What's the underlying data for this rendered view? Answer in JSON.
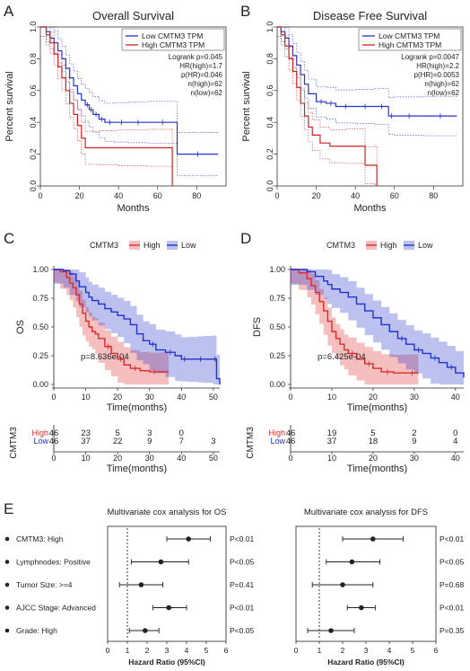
{
  "chart_data": [
    {
      "panel": "A",
      "type": "line",
      "title": "Overall Survival",
      "xlabel": "Months",
      "ylabel": "Percent survival",
      "xlim": [
        0,
        95
      ],
      "ylim": [
        0,
        1
      ],
      "xticks": [
        "0",
        "20",
        "40",
        "60",
        "80"
      ],
      "yticks": [
        "0.0",
        "0.2",
        "0.4",
        "0.6",
        "0.8",
        "1.0"
      ],
      "legend": [
        "Low CMTM3 TPM",
        "High CMTM3 TPM"
      ],
      "stats": [
        "Logrank p=0.045",
        "HR(high)=1.7",
        "p(HR)=0.046",
        "n(high)=62",
        "n(low)=62"
      ],
      "series": [
        {
          "name": "Low CMTM3 TPM",
          "color": "#2233cc",
          "x": [
            0,
            3,
            5,
            7,
            9,
            11,
            13,
            15,
            17,
            19,
            21,
            23,
            25,
            27,
            30,
            33,
            38,
            45,
            55,
            70,
            91
          ],
          "y": [
            1.0,
            0.97,
            0.93,
            0.9,
            0.85,
            0.8,
            0.74,
            0.68,
            0.63,
            0.58,
            0.54,
            0.51,
            0.48,
            0.45,
            0.42,
            0.4,
            0.4,
            0.4,
            0.4,
            0.2,
            0.2
          ]
        },
        {
          "name": "High CMTM3 TPM",
          "color": "#cc2222",
          "x": [
            0,
            3,
            5,
            7,
            9,
            11,
            13,
            15,
            17,
            19,
            21,
            23,
            30,
            40,
            55,
            67,
            67.5
          ],
          "y": [
            1.0,
            0.95,
            0.9,
            0.83,
            0.75,
            0.68,
            0.6,
            0.52,
            0.45,
            0.38,
            0.3,
            0.24,
            0.24,
            0.24,
            0.24,
            0.24,
            0.0
          ]
        }
      ]
    },
    {
      "panel": "B",
      "type": "line",
      "title": "Disease Free Survival",
      "xlabel": "Months",
      "ylabel": "Percent survival",
      "xlim": [
        0,
        95
      ],
      "ylim": [
        0,
        1
      ],
      "xticks": [
        "0",
        "20",
        "40",
        "60",
        "80"
      ],
      "yticks": [
        "0.0",
        "0.2",
        "0.4",
        "0.6",
        "0.8",
        "1.0"
      ],
      "legend": [
        "Low CMTM3 TPM",
        "High CMTM3 TPM"
      ],
      "stats": [
        "Logrank p=0.0047",
        "HR(high)=2.2",
        "p(HR)=0.0053",
        "n(high)=62",
        "n(low)=62"
      ],
      "series": [
        {
          "name": "Low CMTM3 TPM",
          "color": "#2233cc",
          "x": [
            0,
            2,
            4,
            6,
            8,
            10,
            12,
            14,
            16,
            20,
            25,
            30,
            40,
            50,
            57,
            60,
            75,
            92
          ],
          "y": [
            1.0,
            0.97,
            0.93,
            0.88,
            0.82,
            0.76,
            0.7,
            0.64,
            0.58,
            0.53,
            0.52,
            0.5,
            0.5,
            0.5,
            0.44,
            0.44,
            0.44,
            0.44
          ]
        },
        {
          "name": "High CMTM3 TPM",
          "color": "#cc2222",
          "x": [
            0,
            2,
            4,
            6,
            8,
            10,
            12,
            14,
            16,
            18,
            22,
            27,
            35,
            44,
            45,
            50,
            51
          ],
          "y": [
            1.0,
            0.95,
            0.88,
            0.8,
            0.72,
            0.62,
            0.52,
            0.44,
            0.37,
            0.32,
            0.27,
            0.25,
            0.25,
            0.25,
            0.13,
            0.13,
            0.0
          ]
        }
      ]
    },
    {
      "panel": "C",
      "type": "line",
      "ylabel": "OS",
      "xlabel": "Time(months)",
      "legend_title": "CMTM3",
      "legend": [
        "High",
        "Low"
      ],
      "annotation": "p=8.636e-04",
      "xlim": [
        0,
        52
      ],
      "ylim": [
        0,
        1
      ],
      "xticks": [
        "0",
        "10",
        "20",
        "30",
        "40",
        "50"
      ],
      "yticks": [
        "0.00",
        "0.25",
        "0.50",
        "0.75",
        "1.00"
      ],
      "series": [
        {
          "name": "High",
          "color": "#dd2b2b",
          "x": [
            0,
            2,
            4,
            5,
            6,
            7,
            8,
            9,
            10,
            11,
            12,
            13,
            14,
            16,
            18,
            20,
            22,
            24,
            27,
            30,
            33,
            36
          ],
          "y": [
            1.0,
            0.98,
            0.93,
            0.88,
            0.84,
            0.78,
            0.7,
            0.62,
            0.55,
            0.5,
            0.46,
            0.44,
            0.4,
            0.33,
            0.27,
            0.22,
            0.17,
            0.14,
            0.12,
            0.11,
            0.11,
            0.11
          ]
        },
        {
          "name": "Low",
          "color": "#2233cc",
          "x": [
            0,
            3,
            5,
            7,
            8,
            10,
            11,
            12,
            14,
            16,
            18,
            20,
            22,
            24,
            26,
            28,
            30,
            32,
            35,
            38,
            40,
            42,
            45,
            47,
            50,
            51,
            52
          ],
          "y": [
            1.0,
            0.99,
            0.96,
            0.9,
            0.85,
            0.8,
            0.76,
            0.73,
            0.7,
            0.66,
            0.63,
            0.6,
            0.57,
            0.52,
            0.44,
            0.38,
            0.35,
            0.3,
            0.28,
            0.25,
            0.22,
            0.22,
            0.22,
            0.22,
            0.22,
            0.05,
            0.0
          ]
        }
      ],
      "risk_table": {
        "label": "CMTM3",
        "row_labels": [
          "High",
          "Low"
        ],
        "high": [
          "46",
          "23",
          "5",
          "3",
          "0",
          ""
        ],
        "low": [
          "46",
          "37",
          "22",
          "9",
          "7",
          "3"
        ]
      }
    },
    {
      "panel": "D",
      "type": "line",
      "ylabel": "DFS",
      "xlabel": "Time(months)",
      "legend_title": "CMTM3",
      "legend": [
        "High",
        "Low"
      ],
      "annotation": "p=6.425e-04",
      "xlim": [
        0,
        42
      ],
      "ylim": [
        0,
        1
      ],
      "xticks": [
        "0",
        "10",
        "20",
        "30",
        "40"
      ],
      "yticks": [
        "0.00",
        "0.25",
        "0.50",
        "0.75",
        "1.00"
      ],
      "series": [
        {
          "name": "High",
          "color": "#dd2b2b",
          "x": [
            0,
            2,
            4,
            5,
            6,
            7,
            8,
            9,
            10,
            11,
            12,
            13,
            14,
            16,
            18,
            20,
            22,
            25,
            28,
            31
          ],
          "y": [
            1.0,
            0.97,
            0.92,
            0.86,
            0.8,
            0.72,
            0.64,
            0.55,
            0.46,
            0.4,
            0.35,
            0.3,
            0.27,
            0.22,
            0.18,
            0.14,
            0.11,
            0.1,
            0.1,
            0.1
          ]
        },
        {
          "name": "Low",
          "color": "#2233cc",
          "x": [
            0,
            4,
            6,
            8,
            9,
            10,
            12,
            14,
            16,
            18,
            20,
            22,
            24,
            26,
            28,
            30,
            32,
            34,
            36,
            38,
            40,
            42
          ],
          "y": [
            1.0,
            0.98,
            0.94,
            0.9,
            0.87,
            0.83,
            0.8,
            0.76,
            0.7,
            0.64,
            0.58,
            0.52,
            0.46,
            0.4,
            0.35,
            0.3,
            0.27,
            0.23,
            0.19,
            0.15,
            0.1,
            0.06
          ]
        }
      ],
      "risk_table": {
        "label": "CMTM3",
        "row_labels": [
          "High",
          "Low"
        ],
        "high": [
          "46",
          "19",
          "5",
          "2",
          "0"
        ],
        "low": [
          "46",
          "37",
          "18",
          "9",
          "4"
        ]
      }
    },
    {
      "panel": "E",
      "type": "forest",
      "title": "Multivariate cox analysis for OS",
      "xlabel": "Hazard Ratio (95%CI)",
      "xlim": [
        0,
        6
      ],
      "xticks": [
        "0",
        "1",
        "2",
        "3",
        "4",
        "5",
        "6"
      ],
      "reference_line": 1,
      "categories": [
        "CMTM3: High",
        "Lymphnodes: Positive",
        "Tumor Size: >=4",
        "AJCC Stage: Advanced",
        "Grade:  High"
      ],
      "hr": [
        4.1,
        2.7,
        1.7,
        3.1,
        1.9
      ],
      "ci_low": [
        3.0,
        1.2,
        0.6,
        2.3,
        1.1
      ],
      "ci_high": [
        5.2,
        4.1,
        2.8,
        4.0,
        2.6
      ],
      "p_labels": [
        "P<0.01",
        "P<0.05",
        "P=0.41",
        "P<0.01",
        "P<0.05"
      ]
    },
    {
      "panel": "E2",
      "type": "forest",
      "title": "Multivariate cox analysis for DFS",
      "xlabel": "Hazard Ratio (95%CI)",
      "xlim": [
        0,
        6
      ],
      "xticks": [
        "0",
        "1",
        "2",
        "3",
        "4",
        "5",
        "6"
      ],
      "reference_line": 1,
      "categories": [
        "CMTM3: High",
        "Lymphnodes: Positive",
        "Tumor Size: >=4",
        "AJCC Stage: Advanced",
        "Grade:  High"
      ],
      "hr": [
        3.3,
        2.4,
        2.0,
        2.8,
        1.5
      ],
      "ci_low": [
        2.0,
        1.3,
        0.7,
        2.2,
        0.5
      ],
      "ci_high": [
        4.6,
        3.6,
        3.3,
        3.4,
        2.5
      ],
      "p_labels": [
        "P<0.01",
        "P<0.05",
        "P=0.68",
        "P<0.01",
        "P=0.35"
      ]
    }
  ],
  "panel_labels": [
    "A",
    "B",
    "C",
    "D",
    "E"
  ]
}
